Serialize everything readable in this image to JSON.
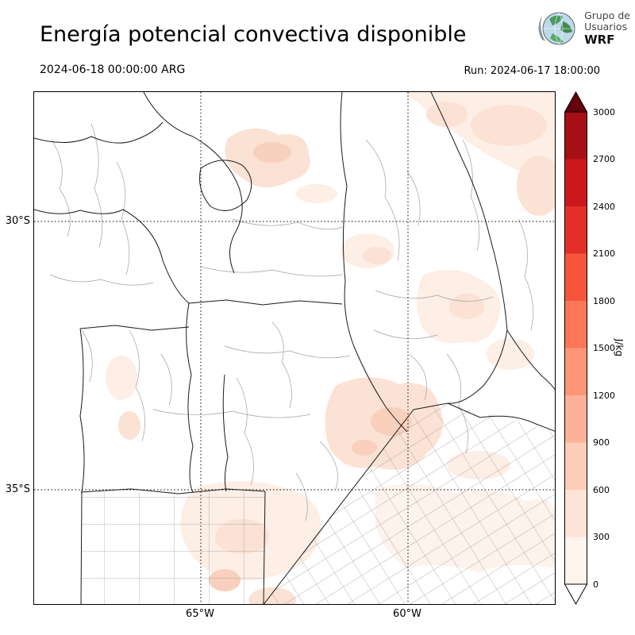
{
  "header": {
    "title": "Energía potencial convectiva disponible",
    "valid_time": "2024-06-18 00:00:00 ARG",
    "run_label": "Run: 2024-06-17 18:00:00"
  },
  "logo": {
    "org_line1": "Grupo de",
    "org_line2": "Usuarios",
    "org_name": "WRF"
  },
  "map": {
    "lat_labels": [
      {
        "text": "30°S"
      },
      {
        "text": "35°S"
      }
    ],
    "lon_labels": [
      {
        "text": "65°W"
      },
      {
        "text": "60°W"
      }
    ]
  },
  "colorbar": {
    "unit": "J/kg",
    "ticks_top_to_bottom": [
      "3000",
      "2700",
      "2400",
      "2100",
      "1800",
      "1500",
      "1200",
      "900",
      "600",
      "300",
      "0"
    ],
    "segment_colors_top_to_bottom": [
      "#a50f15",
      "#cb181d",
      "#e32f27",
      "#f6553c",
      "#fb7757",
      "#fc9576",
      "#fcb298",
      "#fccdb9",
      "#fee3d6",
      "#fff3ed"
    ],
    "over_color": "#67000d",
    "under_color": "#ffffff"
  },
  "chart_data": {
    "type": "heatmap",
    "title": "Energía potencial convectiva disponible",
    "legend_label": "J/kg",
    "scale_ticks": [
      0,
      300,
      600,
      900,
      1200,
      1500,
      1800,
      2100,
      2400,
      2700,
      3000
    ],
    "scale_range": [
      0,
      3000
    ],
    "lat_gridlines": [
      "30°S",
      "35°S"
    ],
    "lon_gridlines": [
      "65°W",
      "60°W"
    ],
    "valid_time": "2024-06-18 00:00:00 ARG",
    "run_time": "Run: 2024-06-17 18:00:00",
    "depicted_values_note": "mostly 0-900 J/kg (pale pink patches) over central-northern Argentina"
  }
}
